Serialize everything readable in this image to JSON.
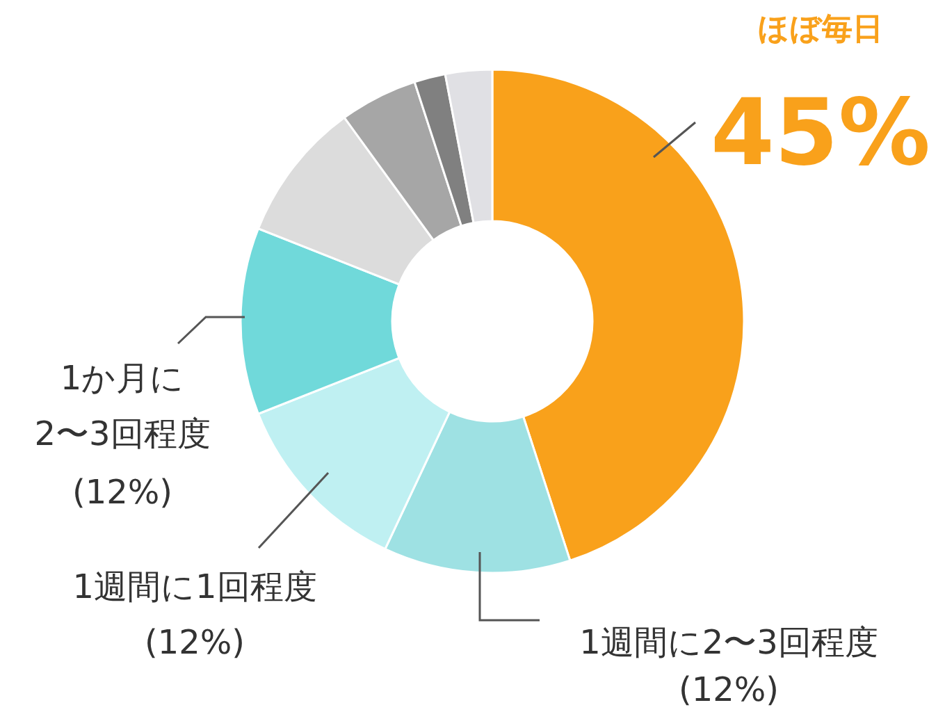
{
  "chart_data": {
    "type": "donut",
    "categories": [
      "ほぼ毎日",
      "1週間に2〜3回程度",
      "1週間に1回程度",
      "1か月に\n2〜3回程度",
      null,
      null,
      null,
      null
    ],
    "values": [
      45,
      12,
      12,
      12,
      9,
      5,
      2,
      3
    ],
    "colors": [
      "#f9a11b",
      "#9ee1e3",
      "#bff0f2",
      "#70d9da",
      "#dcdcdc",
      "#a6a6a6",
      "#808080",
      "#e0e0e4"
    ],
    "value_labels": [
      "45%",
      "(12%)",
      "(12%)",
      "(12%)",
      null,
      null,
      null,
      null
    ]
  }
}
